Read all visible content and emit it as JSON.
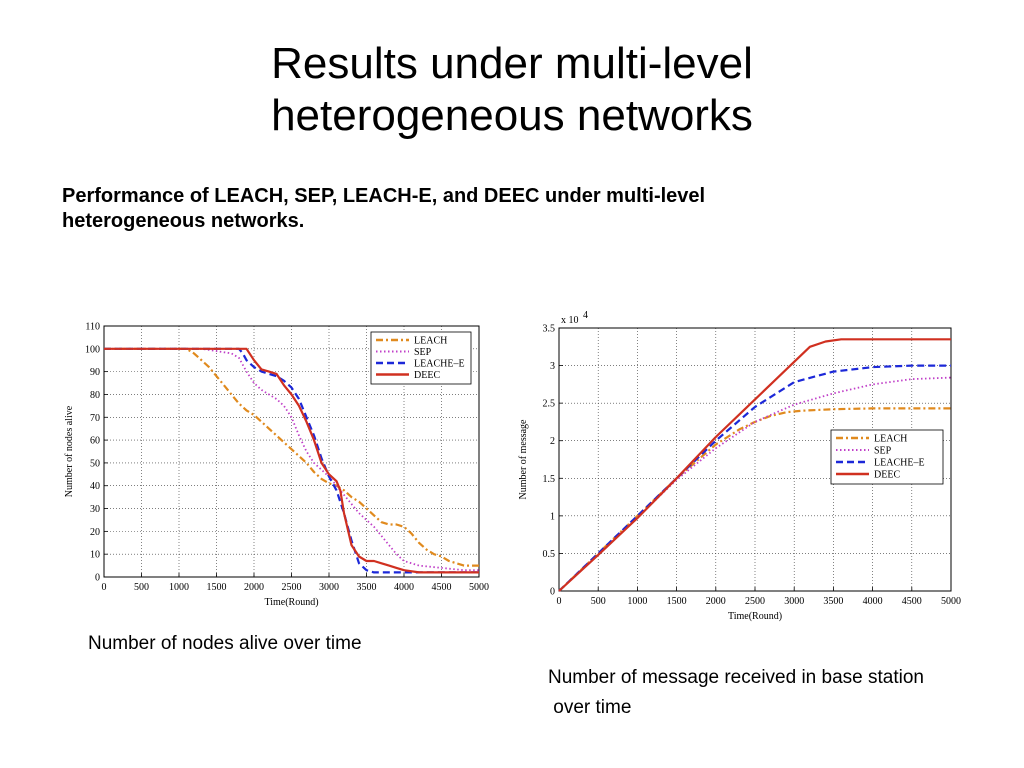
{
  "slide": {
    "title_line1": "Results under multi-level",
    "title_line2": "heterogeneous networks",
    "subtitle_line1": "Performance of LEACH, SEP, LEACH-E, and DEEC under multi-level",
    "subtitle_line2": "heterogeneous networks.",
    "caption_left": "Number of nodes alive over time",
    "caption_right_line1": "Number of message received in base station",
    "caption_right_line2": " over time"
  },
  "colors": {
    "LEACH": "#e08a1e",
    "SEP": "#c040c8",
    "LEACHE_E": "#1c28d8",
    "DEEC": "#d03020",
    "grid": "#333333"
  },
  "chart_data": [
    {
      "type": "line",
      "xlabel": "Time(Round)",
      "ylabel": "Number of nodes alive",
      "xlim": [
        0,
        5000
      ],
      "ylim": [
        0,
        110
      ],
      "xticks": [
        0,
        500,
        1000,
        1500,
        2000,
        2500,
        3000,
        3500,
        4000,
        4500,
        5000
      ],
      "yticks": [
        0,
        10,
        20,
        30,
        40,
        50,
        60,
        70,
        80,
        90,
        100,
        110
      ],
      "grid": true,
      "legend_position": "top-right",
      "series": [
        {
          "name": "LEACH",
          "style": "dashdot",
          "color_key": "LEACH",
          "points": [
            [
              0,
              100
            ],
            [
              1100,
              100
            ],
            [
              1200,
              98
            ],
            [
              1300,
              95
            ],
            [
              1400,
              92
            ],
            [
              1500,
              88
            ],
            [
              1600,
              84
            ],
            [
              1700,
              80
            ],
            [
              1800,
              76
            ],
            [
              1900,
              73
            ],
            [
              2000,
              71
            ],
            [
              2100,
              68
            ],
            [
              2200,
              65
            ],
            [
              2300,
              62
            ],
            [
              2400,
              59
            ],
            [
              2500,
              56
            ],
            [
              2600,
              53
            ],
            [
              2700,
              50
            ],
            [
              2800,
              46
            ],
            [
              2900,
              43
            ],
            [
              3000,
              41
            ],
            [
              3100,
              40
            ],
            [
              3200,
              38
            ],
            [
              3300,
              35
            ],
            [
              3400,
              33
            ],
            [
              3500,
              30
            ],
            [
              3600,
              27
            ],
            [
              3700,
              24
            ],
            [
              3800,
              23
            ],
            [
              3900,
              23
            ],
            [
              4000,
              22
            ],
            [
              4100,
              19
            ],
            [
              4200,
              15
            ],
            [
              4300,
              12
            ],
            [
              4400,
              10
            ],
            [
              4500,
              9
            ],
            [
              4600,
              7
            ],
            [
              4700,
              6
            ],
            [
              4800,
              5
            ],
            [
              5000,
              5
            ]
          ]
        },
        {
          "name": "SEP",
          "style": "dotted",
          "color_key": "SEP",
          "points": [
            [
              0,
              100
            ],
            [
              1300,
              100
            ],
            [
              1500,
              99
            ],
            [
              1700,
              98
            ],
            [
              1800,
              96
            ],
            [
              1900,
              90
            ],
            [
              2000,
              85
            ],
            [
              2100,
              82
            ],
            [
              2200,
              80
            ],
            [
              2300,
              78
            ],
            [
              2400,
              75
            ],
            [
              2500,
              70
            ],
            [
              2600,
              62
            ],
            [
              2700,
              55
            ],
            [
              2800,
              50
            ],
            [
              2900,
              47
            ],
            [
              3000,
              44
            ],
            [
              3100,
              40
            ],
            [
              3200,
              36
            ],
            [
              3300,
              32
            ],
            [
              3400,
              28
            ],
            [
              3500,
              25
            ],
            [
              3600,
              22
            ],
            [
              3700,
              18
            ],
            [
              3800,
              14
            ],
            [
              3900,
              10
            ],
            [
              4000,
              7
            ],
            [
              4200,
              5
            ],
            [
              4500,
              4
            ],
            [
              4800,
              3
            ],
            [
              5000,
              3
            ]
          ]
        },
        {
          "name": "LEACHE–E",
          "style": "dashed",
          "color_key": "LEACHE_E",
          "points": [
            [
              0,
              100
            ],
            [
              1800,
              100
            ],
            [
              1850,
              98
            ],
            [
              1900,
              95
            ],
            [
              2000,
              92
            ],
            [
              2100,
              90
            ],
            [
              2200,
              89
            ],
            [
              2300,
              88
            ],
            [
              2400,
              86
            ],
            [
              2500,
              83
            ],
            [
              2600,
              78
            ],
            [
              2700,
              70
            ],
            [
              2800,
              62
            ],
            [
              2900,
              52
            ],
            [
              3000,
              44
            ],
            [
              3100,
              38
            ],
            [
              3200,
              28
            ],
            [
              3300,
              16
            ],
            [
              3400,
              6
            ],
            [
              3500,
              3
            ],
            [
              3600,
              2
            ],
            [
              3800,
              2
            ],
            [
              4000,
              2
            ],
            [
              4500,
              2
            ],
            [
              5000,
              2
            ]
          ]
        },
        {
          "name": "DEEC",
          "style": "solid",
          "color_key": "DEEC",
          "points": [
            [
              0,
              100
            ],
            [
              1900,
              100
            ],
            [
              2000,
              95
            ],
            [
              2100,
              91
            ],
            [
              2200,
              90
            ],
            [
              2300,
              89
            ],
            [
              2400,
              84
            ],
            [
              2500,
              80
            ],
            [
              2600,
              75
            ],
            [
              2700,
              68
            ],
            [
              2800,
              60
            ],
            [
              2900,
              50
            ],
            [
              3000,
              45
            ],
            [
              3100,
              42
            ],
            [
              3150,
              38
            ],
            [
              3200,
              28
            ],
            [
              3300,
              14
            ],
            [
              3400,
              9
            ],
            [
              3500,
              7
            ],
            [
              3600,
              7
            ],
            [
              3700,
              6
            ],
            [
              3800,
              5
            ],
            [
              3900,
              4
            ],
            [
              4000,
              3
            ],
            [
              4200,
              2
            ],
            [
              4500,
              2
            ],
            [
              5000,
              2
            ]
          ]
        }
      ]
    },
    {
      "type": "line",
      "xlabel": "Time(Round)",
      "ylabel": "Number of message",
      "scale_note": "x 10",
      "scale_exp": "4",
      "xlim": [
        0,
        5000
      ],
      "ylim": [
        0,
        3.5
      ],
      "xticks": [
        0,
        500,
        1000,
        1500,
        2000,
        2500,
        3000,
        3500,
        4000,
        4500,
        5000
      ],
      "yticks": [
        0,
        0.5,
        1,
        1.5,
        2,
        2.5,
        3,
        3.5
      ],
      "grid": true,
      "legend_position": "center-right",
      "series": [
        {
          "name": "LEACH",
          "style": "dashdot",
          "color_key": "LEACH",
          "points": [
            [
              0,
              0
            ],
            [
              500,
              0.5
            ],
            [
              1000,
              1.0
            ],
            [
              1500,
              1.5
            ],
            [
              2000,
              1.95
            ],
            [
              2300,
              2.15
            ],
            [
              2500,
              2.25
            ],
            [
              2700,
              2.33
            ],
            [
              2900,
              2.38
            ],
            [
              3100,
              2.4
            ],
            [
              3500,
              2.42
            ],
            [
              4000,
              2.43
            ],
            [
              5000,
              2.43
            ]
          ]
        },
        {
          "name": "SEP",
          "style": "dotted",
          "color_key": "SEP",
          "points": [
            [
              0,
              0
            ],
            [
              500,
              0.48
            ],
            [
              1000,
              0.98
            ],
            [
              1500,
              1.48
            ],
            [
              2000,
              1.9
            ],
            [
              2500,
              2.25
            ],
            [
              3000,
              2.48
            ],
            [
              3500,
              2.63
            ],
            [
              4000,
              2.75
            ],
            [
              4500,
              2.82
            ],
            [
              5000,
              2.84
            ]
          ]
        },
        {
          "name": "LEACHE–E",
          "style": "dashed",
          "color_key": "LEACHE_E",
          "points": [
            [
              0,
              0
            ],
            [
              500,
              0.5
            ],
            [
              1000,
              1.0
            ],
            [
              1500,
              1.5
            ],
            [
              2000,
              2.0
            ],
            [
              2500,
              2.45
            ],
            [
              3000,
              2.78
            ],
            [
              3500,
              2.92
            ],
            [
              4000,
              2.98
            ],
            [
              4500,
              3.0
            ],
            [
              5000,
              3.0
            ]
          ]
        },
        {
          "name": "DEEC",
          "style": "solid",
          "color_key": "DEEC",
          "points": [
            [
              0,
              0
            ],
            [
              500,
              0.48
            ],
            [
              1000,
              0.97
            ],
            [
              1500,
              1.5
            ],
            [
              2000,
              2.05
            ],
            [
              2500,
              2.55
            ],
            [
              3000,
              3.05
            ],
            [
              3200,
              3.25
            ],
            [
              3400,
              3.32
            ],
            [
              3600,
              3.35
            ],
            [
              4000,
              3.35
            ],
            [
              5000,
              3.35
            ]
          ]
        }
      ]
    }
  ]
}
